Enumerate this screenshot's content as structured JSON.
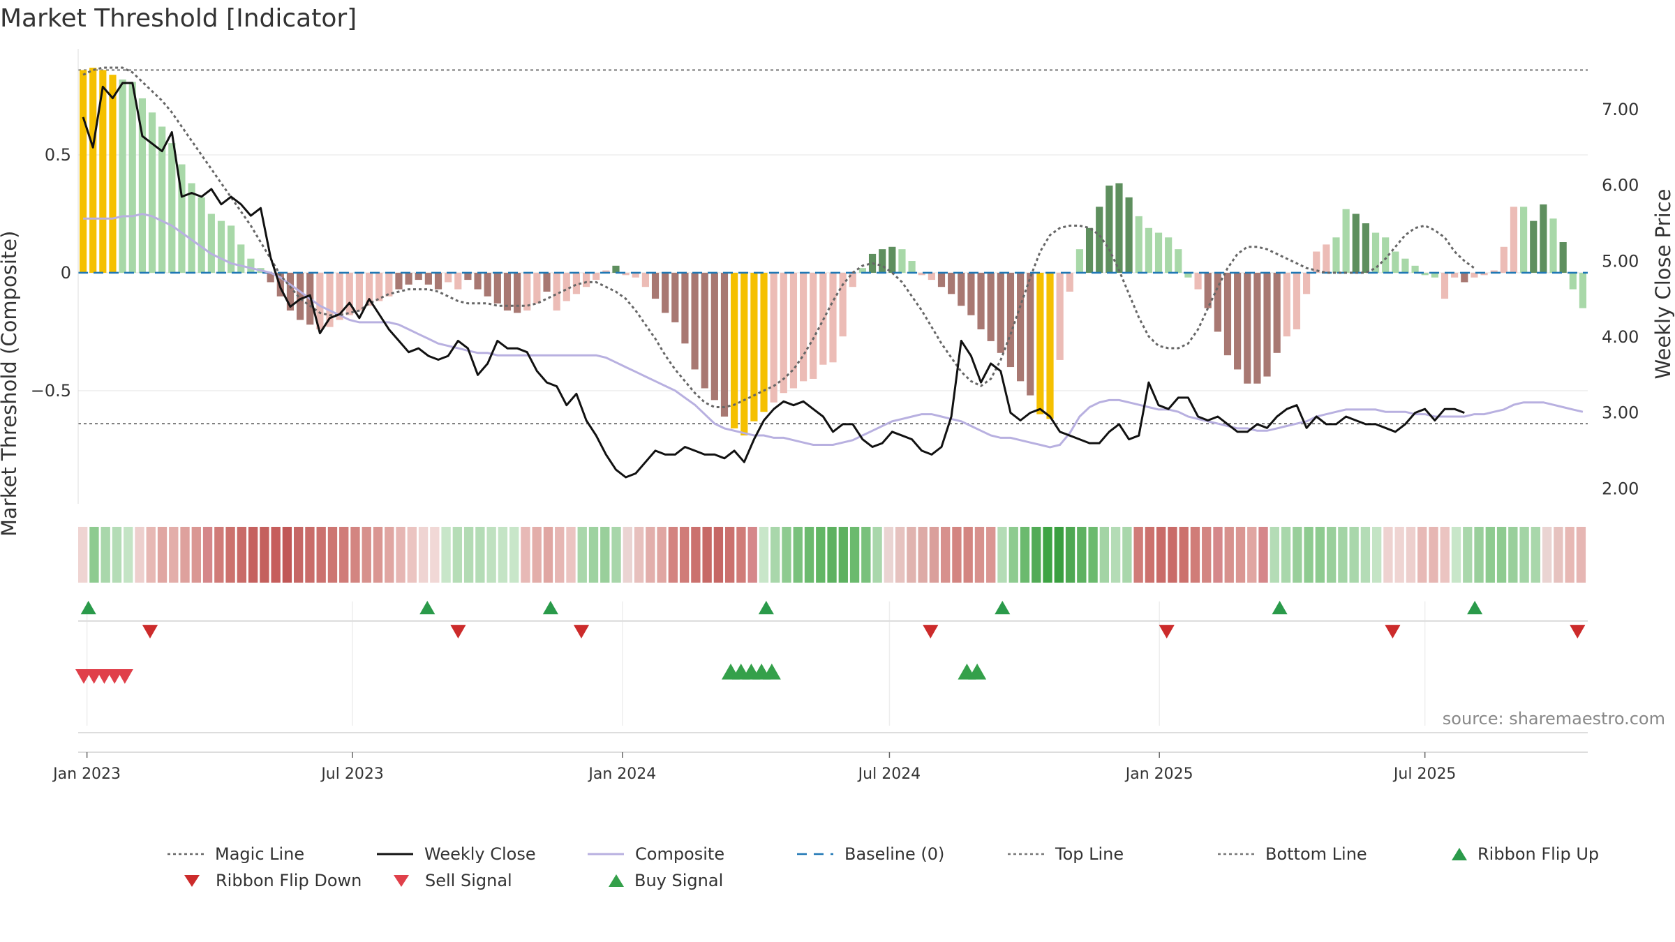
{
  "title": "Market Threshold [Indicator]",
  "source": "source: sharemaestro.com",
  "colors": {
    "magic": "#666666",
    "close": "#111111",
    "composite": "#b8b0e0",
    "baseline": "#1f77b4",
    "threshold_line": "#777777",
    "flip_up": "#2a9a4a",
    "flip_down": "#cc2b2b",
    "sell": "#e0404a",
    "buy": "#34a04a",
    "bar_yellow": "#f5c000",
    "bar_dark_green": "#5e8f5e",
    "bar_light_green": "#a8d8a8",
    "bar_dark_red": "#a87872",
    "bar_light_red": "#ecbcb6"
  },
  "legend": [
    {
      "key": "magic",
      "label": "Magic Line",
      "style": "dotted"
    },
    {
      "key": "close",
      "label": "Weekly Close",
      "style": "solid"
    },
    {
      "key": "composite",
      "label": "Composite",
      "style": "solid"
    },
    {
      "key": "baseline",
      "label": "Baseline (0)",
      "style": "dashed"
    },
    {
      "key": "top",
      "label": "Top Line",
      "style": "dotted"
    },
    {
      "key": "bottom",
      "label": "Bottom Line",
      "style": "dotted"
    },
    {
      "key": "flip_up",
      "label": "Ribbon Flip Up",
      "style": "tri-up"
    },
    {
      "key": "flip_down",
      "label": "Ribbon Flip Down",
      "style": "tri-down"
    },
    {
      "key": "sell",
      "label": "Sell Signal",
      "style": "tri-down"
    },
    {
      "key": "buy",
      "label": "Buy Signal",
      "style": "tri-up"
    }
  ],
  "chart_data": {
    "type": "bar",
    "x_start": "2022-12-26",
    "x_end": "2025-10-20",
    "x_ticks": [
      {
        "label": "Jan 2023",
        "date": "2023-01-01"
      },
      {
        "label": "Jul 2023",
        "date": "2023-07-01"
      },
      {
        "label": "Jan 2024",
        "date": "2024-01-01"
      },
      {
        "label": "Jul 2024",
        "date": "2024-07-01"
      },
      {
        "label": "Jan 2025",
        "date": "2025-01-01"
      },
      {
        "label": "Jul 2025",
        "date": "2025-07-01"
      }
    ],
    "ylabel_left": "Market Threshold (Composite)",
    "ylabel_right": "Weekly Close Price",
    "ylim_left": [
      -0.98,
      0.95
    ],
    "ylim_right": [
      1.8,
      7.8
    ],
    "yticks_left": [
      {
        "label": "0.5",
        "value": 0.5
      },
      {
        "label": "0",
        "value": 0
      },
      {
        "label": "−0.5",
        "value": -0.5
      }
    ],
    "yticks_right": [
      {
        "label": "7.00",
        "value": 7
      },
      {
        "label": "6.00",
        "value": 6
      },
      {
        "label": "5.00",
        "value": 5
      },
      {
        "label": "4.00",
        "value": 4
      },
      {
        "label": "3.00",
        "value": 3
      },
      {
        "label": "2.00",
        "value": 2
      }
    ],
    "top_line": 0.86,
    "bottom_line": -0.64,
    "baseline": 0,
    "histogram": {
      "values": [
        0.86,
        0.87,
        0.86,
        0.84,
        0.82,
        0.81,
        0.74,
        0.68,
        0.62,
        0.55,
        0.46,
        0.38,
        0.32,
        0.25,
        0.22,
        0.2,
        0.12,
        0.06,
        0.02,
        -0.04,
        -0.1,
        -0.16,
        -0.2,
        -0.22,
        -0.24,
        -0.23,
        -0.2,
        -0.18,
        -0.16,
        -0.14,
        -0.12,
        -0.1,
        -0.07,
        -0.05,
        -0.03,
        -0.05,
        -0.07,
        -0.04,
        -0.07,
        -0.03,
        -0.07,
        -0.1,
        -0.13,
        -0.16,
        -0.17,
        -0.16,
        -0.13,
        -0.08,
        -0.16,
        -0.12,
        -0.09,
        -0.06,
        -0.03,
        0.01,
        0.03,
        -0.01,
        -0.02,
        -0.06,
        -0.11,
        -0.17,
        -0.21,
        -0.3,
        -0.41,
        -0.49,
        -0.54,
        -0.61,
        -0.66,
        -0.69,
        -0.63,
        -0.59,
        -0.55,
        -0.51,
        -0.49,
        -0.46,
        -0.45,
        -0.39,
        -0.38,
        -0.27,
        -0.06,
        0.02,
        0.08,
        0.1,
        0.11,
        0.1,
        0.05,
        -0.01,
        -0.03,
        -0.06,
        -0.09,
        -0.14,
        -0.18,
        -0.24,
        -0.29,
        -0.34,
        -0.4,
        -0.46,
        -0.52,
        -0.6,
        -0.62,
        -0.37,
        -0.08,
        0.1,
        0.19,
        0.28,
        0.37,
        0.38,
        0.32,
        0.24,
        0.19,
        0.17,
        0.15,
        0.1,
        -0.02,
        -0.07,
        -0.15,
        -0.25,
        -0.35,
        -0.41,
        -0.47,
        -0.47,
        -0.44,
        -0.34,
        -0.27,
        -0.24,
        -0.09,
        0.09,
        0.12,
        0.15,
        0.27,
        0.25,
        0.21,
        0.17,
        0.15,
        0.09,
        0.06,
        0.03,
        -0.01,
        -0.02,
        -0.11,
        -0.02,
        -0.04,
        -0.02,
        -0.01,
        0.01,
        0.11,
        0.28,
        0.28,
        0.22,
        0.29,
        0.23,
        0.13,
        -0.07,
        -0.15
      ],
      "colors": [
        "yellow",
        "yellow",
        "yellow",
        "yellow",
        "light_green",
        "light_green",
        "light_green",
        "light_green",
        "light_green",
        "light_green",
        "light_green",
        "light_green",
        "light_green",
        "light_green",
        "light_green",
        "light_green",
        "light_green",
        "light_green",
        "light_green",
        "dark_red",
        "dark_red",
        "dark_red",
        "dark_red",
        "dark_red",
        "light_red",
        "light_red",
        "light_red",
        "light_red",
        "light_red",
        "light_red",
        "light_red",
        "light_red",
        "dark_red",
        "dark_red",
        "dark_red",
        "dark_red",
        "dark_red",
        "light_red",
        "light_red",
        "dark_red",
        "dark_red",
        "dark_red",
        "dark_red",
        "dark_red",
        "dark_red",
        "light_red",
        "light_red",
        "dark_red",
        "light_red",
        "light_red",
        "light_red",
        "light_red",
        "light_red",
        "light_red",
        "dark_green",
        "light_red",
        "light_red",
        "light_red",
        "dark_red",
        "dark_red",
        "dark_red",
        "dark_red",
        "dark_red",
        "dark_red",
        "dark_red",
        "dark_red",
        "yellow",
        "yellow",
        "yellow",
        "yellow",
        "light_red",
        "light_red",
        "light_red",
        "light_red",
        "light_red",
        "light_red",
        "light_red",
        "light_red",
        "light_red",
        "light_green",
        "dark_green",
        "dark_green",
        "dark_green",
        "light_green",
        "light_green",
        "light_red",
        "light_red",
        "dark_red",
        "dark_red",
        "dark_red",
        "dark_red",
        "dark_red",
        "dark_red",
        "dark_red",
        "dark_red",
        "dark_red",
        "dark_red",
        "yellow",
        "yellow",
        "light_red",
        "light_red",
        "light_green",
        "dark_green",
        "dark_green",
        "dark_green",
        "dark_green",
        "dark_green",
        "light_green",
        "light_green",
        "light_green",
        "light_green",
        "light_green",
        "light_green",
        "light_red",
        "dark_red",
        "dark_red",
        "dark_red",
        "dark_red",
        "dark_red",
        "dark_red",
        "dark_red",
        "dark_red",
        "light_red",
        "light_red",
        "light_red",
        "light_red",
        "light_red",
        "light_green",
        "light_green",
        "dark_green",
        "dark_green",
        "light_green",
        "light_green",
        "light_green",
        "light_green",
        "light_green",
        "light_green",
        "light_green",
        "light_red",
        "light_red",
        "dark_red",
        "light_red",
        "light_red",
        "light_red",
        "light_red",
        "light_red",
        "light_green",
        "dark_green",
        "dark_green",
        "light_green",
        "dark_green",
        "light_green",
        "light_green",
        "light_red",
        "dark_red"
      ]
    },
    "composite": [
      0.23,
      0.23,
      0.23,
      0.23,
      0.24,
      0.24,
      0.25,
      0.24,
      0.22,
      0.2,
      0.17,
      0.14,
      0.11,
      0.08,
      0.06,
      0.04,
      0.03,
      0.02,
      0.01,
      0.0,
      -0.02,
      -0.05,
      -0.08,
      -0.11,
      -0.14,
      -0.16,
      -0.18,
      -0.2,
      -0.21,
      -0.21,
      -0.21,
      -0.21,
      -0.22,
      -0.24,
      -0.26,
      -0.28,
      -0.3,
      -0.31,
      -0.32,
      -0.33,
      -0.34,
      -0.34,
      -0.35,
      -0.35,
      -0.35,
      -0.35,
      -0.35,
      -0.35,
      -0.35,
      -0.35,
      -0.35,
      -0.35,
      -0.35,
      -0.36,
      -0.38,
      -0.4,
      -0.42,
      -0.44,
      -0.46,
      -0.48,
      -0.5,
      -0.53,
      -0.56,
      -0.6,
      -0.64,
      -0.66,
      -0.67,
      -0.68,
      -0.69,
      -0.69,
      -0.7,
      -0.7,
      -0.71,
      -0.72,
      -0.73,
      -0.73,
      -0.73,
      -0.72,
      -0.71,
      -0.69,
      -0.67,
      -0.65,
      -0.63,
      -0.62,
      -0.61,
      -0.6,
      -0.6,
      -0.61,
      -0.62,
      -0.63,
      -0.65,
      -0.67,
      -0.69,
      -0.7,
      -0.7,
      -0.71,
      -0.72,
      -0.73,
      -0.74,
      -0.73,
      -0.68,
      -0.61,
      -0.57,
      -0.55,
      -0.54,
      -0.54,
      -0.55,
      -0.56,
      -0.57,
      -0.58,
      -0.58,
      -0.59,
      -0.61,
      -0.62,
      -0.63,
      -0.64,
      -0.65,
      -0.66,
      -0.66,
      -0.67,
      -0.67,
      -0.66,
      -0.65,
      -0.64,
      -0.63,
      -0.61,
      -0.6,
      -0.59,
      -0.58,
      -0.58,
      -0.58,
      -0.58,
      -0.59,
      -0.59,
      -0.59,
      -0.6,
      -0.6,
      -0.61,
      -0.61,
      -0.61,
      -0.61,
      -0.6,
      -0.6,
      -0.59,
      -0.58,
      -0.56,
      -0.55,
      -0.55,
      -0.55,
      -0.56,
      -0.57,
      -0.58,
      -0.59
    ],
    "magic_line": [
      0.84,
      0.86,
      0.87,
      0.87,
      0.87,
      0.85,
      0.81,
      0.77,
      0.73,
      0.68,
      0.62,
      0.56,
      0.5,
      0.44,
      0.38,
      0.32,
      0.26,
      0.2,
      0.13,
      0.06,
      -0.01,
      -0.06,
      -0.11,
      -0.14,
      -0.17,
      -0.18,
      -0.18,
      -0.17,
      -0.16,
      -0.13,
      -0.11,
      -0.09,
      -0.08,
      -0.07,
      -0.07,
      -0.07,
      -0.08,
      -0.1,
      -0.12,
      -0.13,
      -0.13,
      -0.13,
      -0.14,
      -0.14,
      -0.14,
      -0.14,
      -0.13,
      -0.11,
      -0.09,
      -0.07,
      -0.05,
      -0.04,
      -0.04,
      -0.06,
      -0.08,
      -0.11,
      -0.16,
      -0.22,
      -0.28,
      -0.35,
      -0.41,
      -0.46,
      -0.51,
      -0.55,
      -0.57,
      -0.57,
      -0.56,
      -0.54,
      -0.52,
      -0.5,
      -0.48,
      -0.45,
      -0.41,
      -0.35,
      -0.28,
      -0.2,
      -0.12,
      -0.05,
      0.0,
      0.03,
      0.04,
      0.03,
      0.0,
      -0.04,
      -0.1,
      -0.16,
      -0.23,
      -0.3,
      -0.36,
      -0.42,
      -0.46,
      -0.48,
      -0.45,
      -0.37,
      -0.26,
      -0.14,
      -0.02,
      0.09,
      0.16,
      0.19,
      0.2,
      0.2,
      0.19,
      0.16,
      0.1,
      0.01,
      -0.09,
      -0.19,
      -0.27,
      -0.31,
      -0.32,
      -0.32,
      -0.3,
      -0.24,
      -0.15,
      -0.06,
      0.02,
      0.08,
      0.11,
      0.11,
      0.1,
      0.08,
      0.06,
      0.04,
      0.02,
      0.01,
      0.0,
      0.0,
      0.0,
      0.0,
      0.0,
      0.02,
      0.06,
      0.11,
      0.16,
      0.19,
      0.2,
      0.18,
      0.15,
      0.09,
      0.05,
      0.02
    ],
    "weekly_close": [
      6.9,
      6.5,
      7.3,
      7.15,
      7.35,
      7.35,
      6.65,
      6.55,
      6.45,
      6.7,
      5.85,
      5.9,
      5.85,
      5.95,
      5.75,
      5.85,
      5.75,
      5.6,
      5.7,
      5.05,
      4.65,
      4.4,
      4.5,
      4.55,
      4.05,
      4.25,
      4.3,
      4.45,
      4.25,
      4.5,
      4.3,
      4.1,
      3.95,
      3.8,
      3.85,
      3.75,
      3.7,
      3.75,
      3.95,
      3.85,
      3.5,
      3.65,
      3.95,
      3.85,
      3.85,
      3.8,
      3.55,
      3.4,
      3.35,
      3.1,
      3.25,
      2.9,
      2.7,
      2.45,
      2.25,
      2.15,
      2.2,
      2.35,
      2.5,
      2.45,
      2.45,
      2.55,
      2.5,
      2.45,
      2.45,
      2.4,
      2.5,
      2.35,
      2.65,
      2.9,
      3.05,
      3.15,
      3.1,
      3.15,
      3.05,
      2.95,
      2.75,
      2.85,
      2.85,
      2.65,
      2.55,
      2.6,
      2.75,
      2.7,
      2.65,
      2.5,
      2.45,
      2.55,
      2.95,
      3.95,
      3.75,
      3.4,
      3.65,
      3.55,
      3.0,
      2.9,
      3.0,
      3.05,
      2.95,
      2.75,
      2.7,
      2.65,
      2.6,
      2.6,
      2.75,
      2.85,
      2.65,
      2.7,
      3.4,
      3.1,
      3.05,
      3.2,
      3.2,
      2.95,
      2.9,
      2.95,
      2.85,
      2.75,
      2.75,
      2.85,
      2.8,
      2.95,
      3.05,
      3.1,
      2.8,
      2.95,
      2.85,
      2.85,
      2.95,
      2.9,
      2.85,
      2.85,
      2.8,
      2.75,
      2.85,
      3.0,
      3.05,
      2.9,
      3.05,
      3.05,
      3.0
    ],
    "ribbon": {
      "colors": [
        "#efd4d2",
        "#8ecb90",
        "#a9d7ab",
        "#b4dcb6",
        "#c4e4c5",
        "#edcfcd",
        "#e7b8b4",
        "#e0a6a2",
        "#e3aeaa",
        "#dea19d",
        "#da9793",
        "#d5878a",
        "#d07b78",
        "#cc716d",
        "#c96b68",
        "#c5615f",
        "#c4605d",
        "#c65e5c",
        "#c15756",
        "#c66765",
        "#c96c69",
        "#cb716e",
        "#cd7672",
        "#d07c78",
        "#d38581",
        "#d7918d",
        "#da9692",
        "#e0a6a2",
        "#e6b6b3",
        "#ebc4c1",
        "#efd4d2",
        "#f1d8d6",
        "#c8e6c9",
        "#b6ddb7",
        "#b3dbb4",
        "#b4dcb6",
        "#bfe1c0",
        "#c4e4c5",
        "#c8e6c9",
        "#e7b9b6",
        "#e3aeaa",
        "#e0a6a2",
        "#e6b6b3",
        "#ebc4c1",
        "#a9d7ab",
        "#9ed2a0",
        "#99cf9b",
        "#a8d6aa",
        "#ead4d2",
        "#e7c0bd",
        "#e2aeab",
        "#e0a6a2",
        "#d38380",
        "#d07c78",
        "#cb716e",
        "#c76966",
        "#c66765",
        "#cb716e",
        "#d07c78",
        "#d5878a",
        "#c8e6c9",
        "#a9d7ab",
        "#8ecb90",
        "#79c17c",
        "#6bba6e",
        "#62b665",
        "#5db160",
        "#5db160",
        "#6bba6e",
        "#79c17c",
        "#a9d7ab",
        "#ead4d2",
        "#e6c2bf",
        "#e0b3af",
        "#ddaaa6",
        "#da9f9b",
        "#d7918d",
        "#d38581",
        "#d38581",
        "#d7918d",
        "#da9692",
        "#b4dcb6",
        "#8ecb90",
        "#6bba6e",
        "#52ab56",
        "#3ea444",
        "#3a9f40",
        "#4ea852",
        "#5db160",
        "#6bba6e",
        "#a3d4a5",
        "#b4dcb6",
        "#a9d7ab",
        "#d07c78",
        "#cc716d",
        "#c96b68",
        "#c96b68",
        "#cc716d",
        "#d07c78",
        "#d38581",
        "#d5878a",
        "#d7918d",
        "#da9692",
        "#e0a6a2",
        "#d5878a",
        "#b4dcb6",
        "#a9d7ab",
        "#99cf9b",
        "#8ecb90",
        "#8ecb90",
        "#99cf9b",
        "#a3d4a5",
        "#a9d7ab",
        "#b4dcb6",
        "#c4e4c5",
        "#eed2d0",
        "#efd4d2",
        "#edcfcd",
        "#e7b9b6",
        "#e6b6b3",
        "#ebc4c1",
        "#c8e6c9",
        "#a9d7ab",
        "#99cf9b",
        "#8ecb90",
        "#8ecb90",
        "#99cf9b",
        "#a3d4a5",
        "#a9d7ab",
        "#ead4d2",
        "#e6c2bf",
        "#e7b8b4",
        "#e6b6b3"
      ]
    },
    "ribbon_flip_up": [
      "2023-01-02",
      "2023-08-21",
      "2023-11-13",
      "2024-04-08",
      "2024-09-16",
      "2025-03-24",
      "2025-08-04"
    ],
    "ribbon_flip_down": [
      "2023-02-13",
      "2023-09-11",
      "2023-12-04",
      "2024-07-29",
      "2025-01-06",
      "2025-06-09",
      "2025-10-13"
    ],
    "sell_signals": [
      "2022-12-26",
      "2023-01-02",
      "2023-01-09",
      "2023-01-16",
      "2023-01-23"
    ],
    "buy_signals": [
      "2024-03-11",
      "2024-03-18",
      "2024-03-25",
      "2024-04-01",
      "2024-04-08",
      "2024-08-19",
      "2024-08-26"
    ]
  }
}
